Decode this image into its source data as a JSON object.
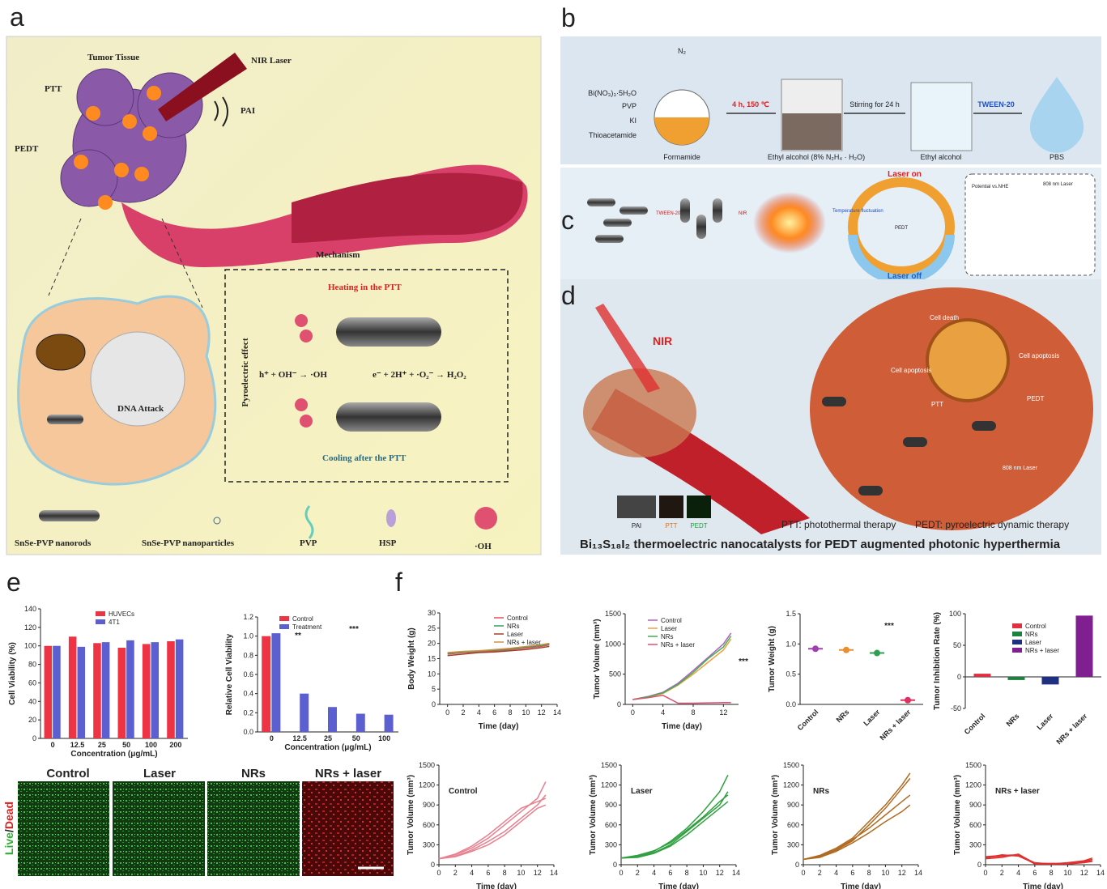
{
  "panels": {
    "letters": [
      "a",
      "b",
      "c",
      "d",
      "e",
      "f"
    ],
    "a": {
      "tumor": "Tumor Tissue",
      "laser": "NIR Laser",
      "ptt": "PTT",
      "pai": "PAI",
      "pedt": "PEDT",
      "mechanism": "Mechanism",
      "effect": "Pyroelectric effect",
      "heating": "Heating in the PTT",
      "cooling": "Cooling after the PTT",
      "eq1": "h⁺ + OH⁻ → ·OH",
      "eq2": "e⁻ + 2H⁺ + ·O₂⁻ → H₂O₂",
      "dna": "DNA Attack",
      "legend": [
        "SnSe-PVP nanorods",
        "SnSe-PVP nanoparticles",
        "PVP",
        "HSP",
        "·OH"
      ]
    },
    "b": {
      "reagents": [
        "Bi(NO₃)₃·5H₂O",
        "PVP",
        "KI",
        "Thioacetamide"
      ],
      "gas": "N₂",
      "step1": "4 h, 150 ℃",
      "step2": "Stirring for 24 h",
      "step3": "TWEEN-20",
      "labels": [
        "Formamide",
        "Ethyl alcohol (8% N₂H₄ · H₂O)",
        "Ethyl alcohol",
        "PBS"
      ]
    },
    "c": {
      "tween": "TWEEN-20",
      "nir": "NIR",
      "fluct": "Temperature fluctuation",
      "on": "Laser on",
      "off": "Laser off",
      "pedt": "PEDT",
      "laser": "808 nm Laser",
      "potential": "Potential vs.NHE"
    },
    "d": {
      "nir": "NIR",
      "death": "Cell death",
      "apop1": "Cell apoptosis",
      "apop2": "Cell apoptosis",
      "ptt": "PTT",
      "pedt": "PEDT",
      "laser": "808 nm Laser",
      "thumbs": [
        "PAI",
        "PTT",
        "PEDT"
      ],
      "def1": "PTT: photothermal therapy",
      "def2": "PEDT: pyroelectric dynamic therapy",
      "title": "Bi₁₃S₁₈I₂ thermoelectric nanocatalysts for  PEDT augmented photonic hyperthermia"
    },
    "e": {
      "images": [
        "Control",
        "Laser",
        "NRs",
        "NRs + laser"
      ],
      "stain": [
        "Live",
        "/",
        "Dead"
      ]
    }
  },
  "chart_data": [
    {
      "type": "bar",
      "xlabel": "Concentration (μg/mL)",
      "ylabel": "Cell Viability (%)",
      "categories": [
        "0",
        "12.5",
        "25",
        "50",
        "100",
        "200"
      ],
      "series": [
        {
          "name": "HUVECs",
          "color": "#ee3344",
          "values": [
            100,
            110,
            103,
            98,
            102,
            105
          ]
        },
        {
          "name": "4T1",
          "color": "#5b5fd0",
          "values": [
            100,
            99,
            104,
            106,
            104,
            107
          ]
        }
      ],
      "ylim": [
        0,
        140
      ],
      "yticks": [
        0,
        20,
        40,
        60,
        80,
        100,
        120,
        140
      ]
    },
    {
      "type": "bar",
      "xlabel": "Concentration (μg/mL)",
      "ylabel": "Relative Cell Viability",
      "categories": [
        "0",
        "12.5",
        "25",
        "50",
        "100"
      ],
      "series": [
        {
          "name": "Control",
          "color": "#ee3344",
          "values": [
            1,
            null,
            null,
            null,
            null
          ]
        },
        {
          "name": "Treatment",
          "color": "#5b5fd0",
          "values": [
            1.03,
            0.4,
            0.26,
            0.19,
            0.18
          ]
        }
      ],
      "ylim": [
        0,
        1.2
      ],
      "yticks": [
        {
          "value": 0,
          "label": "0.0"
        },
        0.2,
        0.4,
        0.6,
        0.8,
        {
          "value": 1,
          "label": "1.0"
        },
        1.2
      ],
      "annotations": [
        "**",
        "***"
      ]
    },
    {
      "type": "line",
      "xlabel": "Time (day)",
      "ylabel": "Body Weight (g)",
      "x": [
        0,
        2,
        4,
        6,
        8,
        10,
        12,
        13
      ],
      "xlim": [
        -1,
        14
      ],
      "xticks": [
        0,
        2,
        4,
        6,
        8,
        10,
        12,
        14
      ],
      "series": [
        {
          "name": "Control",
          "color": "#e05060",
          "values": [
            16.5,
            17,
            17.2,
            17.5,
            18,
            18.5,
            19,
            19.5
          ]
        },
        {
          "name": "NRs",
          "color": "#30a060",
          "values": [
            16.8,
            17.2,
            17.5,
            17.8,
            18.2,
            18.8,
            19.3,
            19.8
          ]
        },
        {
          "name": "Laser",
          "color": "#a04028",
          "values": [
            16,
            16.5,
            17,
            17.2,
            17.6,
            18,
            18.6,
            19
          ]
        },
        {
          "name": "NRs + laser",
          "color": "#d09040",
          "values": [
            17,
            17.4,
            17.6,
            18,
            18.4,
            19,
            19.6,
            20
          ]
        }
      ],
      "ylim": [
        0,
        30
      ],
      "yticks": [
        0,
        5,
        10,
        15,
        20,
        25,
        30
      ]
    },
    {
      "type": "line",
      "xlabel": "Time (day)",
      "ylabel": "Tumor Volume (mm³)",
      "x": [
        0,
        2,
        4,
        6,
        8,
        10,
        12,
        13
      ],
      "xlim": [
        -1,
        14
      ],
      "xticks": [
        0,
        4,
        8,
        12
      ],
      "series": [
        {
          "name": "Control",
          "color": "#b060c0",
          "values": [
            80,
            130,
            200,
            350,
            560,
            780,
            1000,
            1180
          ]
        },
        {
          "name": "Laser",
          "color": "#f0a040",
          "values": [
            80,
            120,
            180,
            320,
            500,
            700,
            900,
            1080
          ]
        },
        {
          "name": "NRs",
          "color": "#40b050",
          "values": [
            80,
            125,
            190,
            330,
            530,
            760,
            950,
            1130
          ]
        },
        {
          "name": "NRs + laser",
          "color": "#e05070",
          "values": [
            80,
            110,
            150,
            20,
            20,
            25,
            30,
            30
          ]
        }
      ],
      "ylim": [
        0,
        1500
      ],
      "yticks": [
        0,
        500,
        1000,
        1500
      ],
      "annotations": [
        "***"
      ]
    },
    {
      "type": "dot",
      "ylabel": "Tumor Weight (g)",
      "categories": [
        "Control",
        "NRs",
        "Laser",
        "NRs + laser"
      ],
      "values": [
        0.92,
        0.9,
        0.85,
        0.07
      ],
      "colors": [
        "#a040b0",
        "#e89030",
        "#30a050",
        "#e03060"
      ],
      "ylim": [
        0,
        1.5
      ],
      "yticks": [
        {
          "value": 0,
          "label": "0.0"
        },
        0.5,
        {
          "value": 1,
          "label": "1.0"
        },
        1.5
      ],
      "annotations": [
        "***"
      ]
    },
    {
      "type": "bar",
      "ylabel": "Tumor Inhibition Rate (%)",
      "categories": [
        "Control",
        "NRs",
        "Laser",
        "NRs + laser"
      ],
      "values": [
        5,
        -5,
        -12,
        97
      ],
      "colors": [
        "#e03040",
        "#208040",
        "#203080",
        "#802090"
      ],
      "ylim": [
        -50,
        100
      ],
      "yticks": [
        -50,
        0,
        50,
        100
      ]
    },
    {
      "type": "line",
      "title": "Control",
      "xlabel": "Time (day)",
      "ylabel": "Tumor Volume (mm³)",
      "x": [
        0,
        2,
        4,
        6,
        8,
        10,
        12,
        13
      ],
      "xlim": [
        0,
        14
      ],
      "xticks": [
        0,
        2,
        4,
        6,
        8,
        10,
        12,
        14
      ],
      "ylim": [
        0,
        1500
      ],
      "yticks": [
        0,
        300,
        600,
        900,
        1200,
        1500
      ],
      "series": [
        {
          "color": "#e88090",
          "values": [
            90,
            150,
            250,
            400,
            600,
            800,
            1000,
            1250
          ]
        },
        {
          "color": "#e88090",
          "values": [
            90,
            130,
            220,
            350,
            500,
            700,
            900,
            1050
          ]
        },
        {
          "color": "#e88090",
          "values": [
            90,
            160,
            280,
            450,
            650,
            850,
            950,
            1000
          ]
        },
        {
          "color": "#e88090",
          "values": [
            90,
            120,
            200,
            300,
            450,
            650,
            850,
            900
          ]
        }
      ]
    },
    {
      "type": "line",
      "title": "Laser",
      "xlabel": "Time (day)",
      "ylabel": "Tumor Volume (mm³)",
      "x": [
        0,
        2,
        4,
        6,
        8,
        10,
        12,
        13
      ],
      "xlim": [
        0,
        14
      ],
      "xticks": [
        0,
        2,
        4,
        6,
        8,
        10,
        12,
        14
      ],
      "ylim": [
        0,
        1500
      ],
      "yticks": [
        0,
        300,
        600,
        900,
        1200,
        1500
      ],
      "series": [
        {
          "color": "#30a040",
          "values": [
            100,
            130,
            200,
            350,
            550,
            800,
            1100,
            1350
          ]
        },
        {
          "color": "#30a040",
          "values": [
            100,
            120,
            180,
            300,
            500,
            700,
            900,
            1100
          ]
        },
        {
          "color": "#30a040",
          "values": [
            100,
            110,
            170,
            280,
            450,
            650,
            850,
            950
          ]
        },
        {
          "color": "#30a040",
          "values": [
            100,
            140,
            210,
            330,
            520,
            720,
            950,
            1050
          ]
        }
      ]
    },
    {
      "type": "line",
      "title": "NRs",
      "xlabel": "Time (day)",
      "ylabel": "Tumor Volume (mm³)",
      "x": [
        0,
        2,
        4,
        6,
        8,
        10,
        12,
        13
      ],
      "xlim": [
        0,
        14
      ],
      "xticks": [
        0,
        2,
        4,
        6,
        8,
        10,
        12,
        14
      ],
      "ylim": [
        0,
        1500
      ],
      "yticks": [
        0,
        300,
        600,
        900,
        1200,
        1500
      ],
      "series": [
        {
          "color": "#b06a20",
          "values": [
            80,
            140,
            250,
            400,
            650,
            900,
            1200,
            1380
          ]
        },
        {
          "color": "#b06a20",
          "values": [
            80,
            120,
            220,
            360,
            600,
            850,
            1150,
            1300
          ]
        },
        {
          "color": "#b06a20",
          "values": [
            80,
            130,
            230,
            380,
            550,
            750,
            950,
            1050
          ]
        },
        {
          "color": "#b06a20",
          "values": [
            80,
            110,
            200,
            330,
            480,
            650,
            800,
            900
          ]
        }
      ]
    },
    {
      "type": "line",
      "title": "NRs + laser",
      "xlabel": "Time (day)",
      "ylabel": "Tumor Volume (mm³)",
      "x": [
        0,
        2,
        4,
        6,
        8,
        10,
        12,
        13
      ],
      "xlim": [
        0,
        14
      ],
      "xticks": [
        0,
        2,
        4,
        6,
        8,
        10,
        12,
        14
      ],
      "ylim": [
        0,
        1500
      ],
      "yticks": [
        0,
        300,
        600,
        900,
        1200,
        1500
      ],
      "series": [
        {
          "color": "#e03030",
          "values": [
            100,
            150,
            130,
            20,
            10,
            20,
            50,
            80
          ]
        },
        {
          "color": "#e03030",
          "values": [
            120,
            140,
            150,
            10,
            10,
            30,
            60,
            100
          ]
        },
        {
          "color": "#e03030",
          "values": [
            90,
            110,
            160,
            20,
            20,
            20,
            40,
            60
          ]
        },
        {
          "color": "#e03030",
          "values": [
            110,
            130,
            140,
            30,
            10,
            10,
            30,
            50
          ]
        }
      ]
    }
  ]
}
